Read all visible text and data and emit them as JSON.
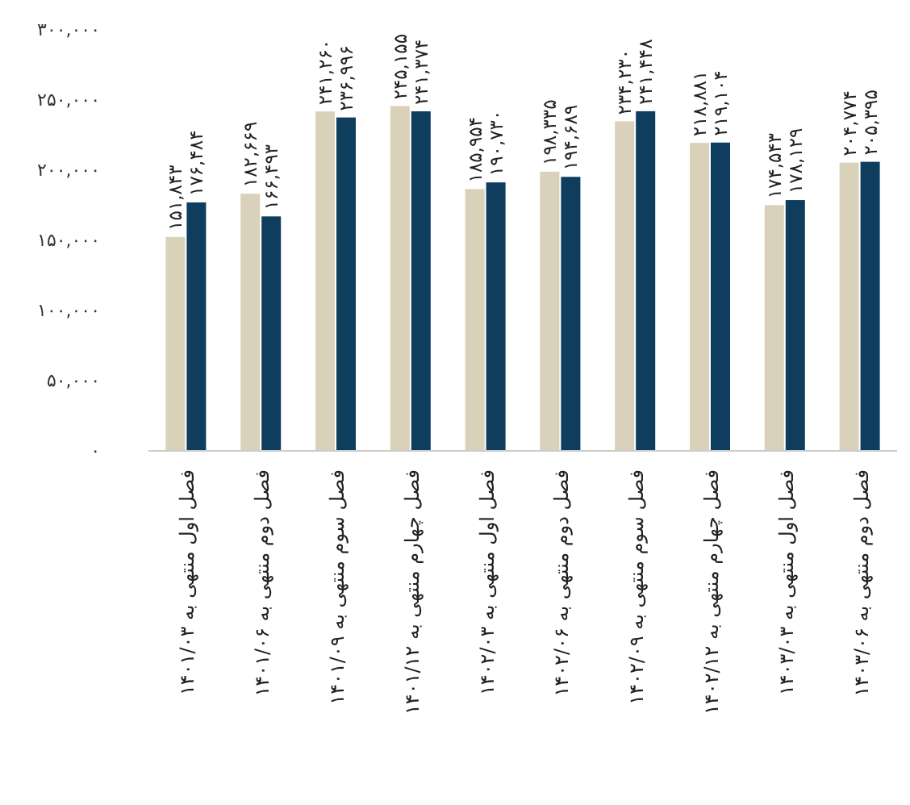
{
  "chart_data": {
    "type": "bar",
    "categories": [
      "فصل اول منتهی به ۱۴۰۱/۰۳",
      "فصل دوم منتهی به ۱۴۰۱/۰۶",
      "فصل سوم منتهی به ۱۴۰۱/۰۹",
      "فصل چهارم منتهی به ۱۴۰۱/۱۲",
      "فصل اول منتهی به ۱۴۰۲/۰۳",
      "فصل دوم منتهی به ۱۴۰۲/۰۶",
      "فصل سوم منتهی به ۱۴۰۲/۰۹",
      "فصل چهارم منتهی به ۱۴۰۲/۱۲",
      "فصل اول منتهی به ۱۴۰۳/۰۳",
      "فصل دوم منتهی به ۱۴۰۳/۰۶"
    ],
    "series": [
      {
        "color": "#d9d1b9",
        "values": [
          151843,
          182669,
          241260,
          245155,
          185954,
          198335,
          234230,
          218881,
          174543,
          204774
        ],
        "value_labels": [
          "۱۵۱,۸۴۳",
          "۱۸۲,۶۶۹",
          "۲۴۱,۲۶۰",
          "۲۴۵,۱۵۵",
          "۱۸۵,۹۵۴",
          "۱۹۸,۳۳۵",
          "۲۳۴,۲۳۰",
          "۲۱۸,۸۸۱",
          "۱۷۴,۵۴۳",
          "۲۰۴,۷۷۴"
        ]
      },
      {
        "color": "#0f3d5e",
        "values": [
          176484,
          166493,
          236996,
          241374,
          190730,
          194689,
          241448,
          219104,
          178129,
          205395
        ],
        "value_labels": [
          "۱۷۶,۴۸۴",
          "۱۶۶,۴۹۳",
          "۲۳۶,۹۹۶",
          "۲۴۱,۳۷۴",
          "۱۹۰,۷۳۰",
          "۱۹۴,۶۸۹",
          "۲۴۱,۴۴۸",
          "۲۱۹,۱۰۴",
          "۱۷۸,۱۲۹",
          "۲۰۵,۳۹۵"
        ]
      }
    ],
    "ylim": [
      0,
      300000
    ],
    "yticks": [
      {
        "value": 0,
        "label": "۰"
      },
      {
        "value": 50000,
        "label": "۵۰,۰۰۰"
      },
      {
        "value": 100000,
        "label": "۱۰۰,۰۰۰"
      },
      {
        "value": 150000,
        "label": "۱۵۰,۰۰۰"
      },
      {
        "value": 200000,
        "label": "۲۰۰,۰۰۰"
      },
      {
        "value": 250000,
        "label": "۲۵۰,۰۰۰"
      },
      {
        "value": 300000,
        "label": "۳۰۰,۰۰۰"
      }
    ],
    "grid": false
  }
}
